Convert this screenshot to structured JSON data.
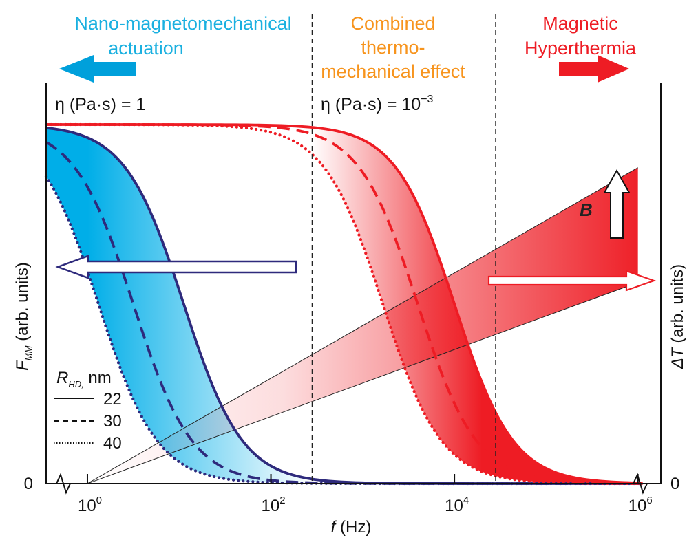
{
  "regions": {
    "left": [
      "Nano-magnetomechanical",
      "actuation"
    ],
    "middle": [
      "Combined",
      "thermo-",
      "mechanical effect"
    ],
    "right": [
      "Magnetic",
      "Hyperthermia"
    ]
  },
  "viscosity_labels": {
    "left": {
      "prefix": "η (Pa·s) = 1",
      "exponent": ""
    },
    "right": {
      "prefix": "η (Pa·s) = 10",
      "exponent": "−3"
    }
  },
  "axes": {
    "left_ylabel_main": "F",
    "left_ylabel_sub": "MM",
    "left_ylabel_rest": " (arb. units)",
    "right_ylabel_main": "ΔT",
    "right_ylabel_rest": " (arb. units)",
    "left_zero": "0",
    "right_zero": "0",
    "xlabel_main": "f",
    "xlabel_rest": " (Hz)",
    "x_ticks": [
      {
        "base": "10",
        "exp": "0",
        "log": 0
      },
      {
        "base": "10",
        "exp": "2",
        "log": 2
      },
      {
        "base": "10",
        "exp": "4",
        "log": 4
      },
      {
        "base": "10",
        "exp": "6",
        "log": 6
      }
    ]
  },
  "legend": {
    "title_main": "R",
    "title_sub": "HD,",
    "title_rest": " nm",
    "entries": [
      {
        "label": "22",
        "style": "solid"
      },
      {
        "label": "30",
        "style": "dashed"
      },
      {
        "label": "40",
        "style": "dotted"
      }
    ]
  },
  "field_label": "B",
  "colors": {
    "blue": "#00aee8",
    "red": "#ee1c24",
    "navy": "#2e2a7c",
    "cyan_text": "#1ab0e0",
    "orange_text": "#f7941d",
    "red_text": "#ee1c24"
  },
  "chart_data": {
    "type": "line",
    "x_scale": "log",
    "xlim_log10": [
      -0.45,
      6.25
    ],
    "x_ticks_log10": [
      0,
      2,
      4,
      6
    ],
    "boundaries_log10": [
      2.45,
      4.45
    ],
    "y_left": "F_MM (arb. units), plateau normalized to 1",
    "series": [
      {
        "name": "22",
        "group": "η (Pa·s) = 1",
        "style": "solid",
        "color": "#2e2a7c",
        "half_drop_log10": 1.05,
        "slope": 1.2
      },
      {
        "name": "30",
        "group": "η (Pa·s) = 1",
        "style": "dashed",
        "color": "#2e2a7c",
        "half_drop_log10": 0.5,
        "slope": 1.2
      },
      {
        "name": "40",
        "group": "η (Pa·s) = 1",
        "style": "dotted",
        "color": "#2e2a7c",
        "half_drop_log10": 0.12,
        "slope": 1.2
      },
      {
        "name": "22",
        "group": "η (Pa·s) = 10−3",
        "style": "solid",
        "color": "#ee1c24",
        "half_drop_log10": 4.0,
        "slope": 1.2
      },
      {
        "name": "30",
        "group": "η (Pa·s) = 10−3",
        "style": "dashed",
        "color": "#ee1c24",
        "half_drop_log10": 3.6,
        "slope": 1.2
      },
      {
        "name": "40",
        "group": "η (Pa·s) = 10−3",
        "style": "dotted",
        "color": "#ee1c24",
        "half_drop_log10": 3.22,
        "slope": 1.2
      }
    ],
    "delta_T_lines": [
      {
        "upper_end": 0.88,
        "lower_end": 0.56
      },
      {
        "upper_end": 0.6,
        "lower_end": 0.3
      }
    ]
  }
}
